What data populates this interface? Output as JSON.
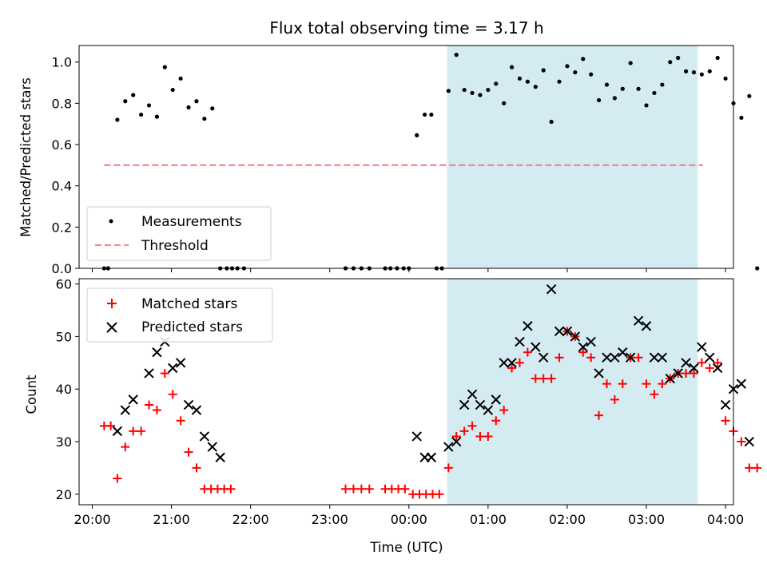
{
  "chart_data": [
    {
      "type": "scatter",
      "title": "Flux total observing time = 3.17 h",
      "xlabel": "",
      "ylabel": "Matched/Predicted stars",
      "ylim": [
        0,
        1.08
      ],
      "xlim": [
        "19:50",
        "04:06"
      ],
      "yticks": [
        "0.0",
        "0.2",
        "0.4",
        "0.6",
        "0.8",
        "1.0"
      ],
      "grid": false,
      "legend_position": "lower-left",
      "highlight_span": {
        "from": "00:29",
        "to": "03:39",
        "color": "#d4ebf1"
      },
      "series": [
        {
          "name": "Measurements",
          "marker": "dot",
          "color": "#000000",
          "points": [
            [
              "20:09",
              0
            ],
            [
              "20:12",
              0
            ],
            [
              "20:19",
              0.72
            ],
            [
              "20:25",
              0.81
            ],
            [
              "20:31",
              0.84
            ],
            [
              "20:37",
              0.745
            ],
            [
              "20:43",
              0.79
            ],
            [
              "20:49",
              0.735
            ],
            [
              "20:55",
              0.975
            ],
            [
              "21:01",
              0.865
            ],
            [
              "21:07",
              0.92
            ],
            [
              "21:13",
              0.78
            ],
            [
              "21:19",
              0.81
            ],
            [
              "21:25",
              0.725
            ],
            [
              "21:31",
              0.775
            ],
            [
              "21:37",
              0
            ],
            [
              "21:42",
              0
            ],
            [
              "21:46",
              0
            ],
            [
              "21:50",
              0
            ],
            [
              "21:55",
              0
            ],
            [
              "23:12",
              0
            ],
            [
              "23:18",
              0
            ],
            [
              "23:24",
              0
            ],
            [
              "23:30",
              0
            ],
            [
              "23:42",
              0
            ],
            [
              "23:46",
              0
            ],
            [
              "23:51",
              0
            ],
            [
              "23:56",
              0
            ],
            [
              "00:00",
              0
            ],
            [
              "00:06",
              0.645
            ],
            [
              "00:12",
              0.745
            ],
            [
              "00:17",
              0.745
            ],
            [
              "00:21",
              0
            ],
            [
              "00:25",
              0
            ],
            [
              "00:30",
              0.86
            ],
            [
              "00:36",
              1.035
            ],
            [
              "00:42",
              0.865
            ],
            [
              "00:48",
              0.85
            ],
            [
              "00:54",
              0.84
            ],
            [
              "01:00",
              0.865
            ],
            [
              "01:06",
              0.895
            ],
            [
              "01:12",
              0.8
            ],
            [
              "01:18",
              0.975
            ],
            [
              "01:24",
              0.92
            ],
            [
              "01:30",
              0.905
            ],
            [
              "01:36",
              0.88
            ],
            [
              "01:42",
              0.96
            ],
            [
              "01:48",
              0.71
            ],
            [
              "01:54",
              0.905
            ],
            [
              "02:00",
              0.98
            ],
            [
              "02:06",
              0.95
            ],
            [
              "02:12",
              1.015
            ],
            [
              "02:18",
              0.94
            ],
            [
              "02:24",
              0.815
            ],
            [
              "02:30",
              0.89
            ],
            [
              "02:36",
              0.825
            ],
            [
              "02:42",
              0.87
            ],
            [
              "02:48",
              0.995
            ],
            [
              "02:54",
              0.87
            ],
            [
              "03:00",
              0.79
            ],
            [
              "03:06",
              0.85
            ],
            [
              "03:12",
              0.89
            ],
            [
              "03:18",
              1.0
            ],
            [
              "03:24",
              1.02
            ],
            [
              "03:30",
              0.955
            ],
            [
              "03:36",
              0.95
            ],
            [
              "03:42",
              0.94
            ],
            [
              "03:48",
              0.955
            ],
            [
              "03:54",
              1.02
            ],
            [
              "04:00",
              0.92
            ],
            [
              "04:06",
              0.8
            ],
            [
              "04:12",
              0.73
            ],
            [
              "04:18",
              0.835
            ],
            [
              "04:24",
              0
            ]
          ]
        },
        {
          "name": "Threshold",
          "marker": "dashed-line",
          "color": "#ff7f7f",
          "x": [
            "20:09",
            "03:43"
          ],
          "y": [
            0.5,
            0.5
          ]
        }
      ]
    },
    {
      "type": "scatter",
      "title": "",
      "xlabel": "Time (UTC)",
      "ylabel": "Count",
      "ylim": [
        18,
        61
      ],
      "xticks": [
        "20:00",
        "21:00",
        "22:00",
        "23:00",
        "00:00",
        "01:00",
        "02:00",
        "03:00",
        "04:00"
      ],
      "yticks": [
        "20",
        "30",
        "40",
        "50",
        "60"
      ],
      "grid": false,
      "legend_position": "top-left",
      "highlight_span": {
        "from": "00:29",
        "to": "03:39",
        "color": "#d4ebf1"
      },
      "series": [
        {
          "name": "Matched stars",
          "marker": "plus",
          "color": "#ff0000",
          "points": [
            [
              "20:09",
              33
            ],
            [
              "20:14",
              33
            ],
            [
              "20:19",
              23
            ],
            [
              "20:25",
              29
            ],
            [
              "20:31",
              32
            ],
            [
              "20:37",
              32
            ],
            [
              "20:43",
              37
            ],
            [
              "20:49",
              36
            ],
            [
              "20:55",
              43
            ],
            [
              "21:01",
              39
            ],
            [
              "21:07",
              34
            ],
            [
              "21:13",
              28
            ],
            [
              "21:19",
              25
            ],
            [
              "21:25",
              21
            ],
            [
              "21:30",
              21
            ],
            [
              "21:35",
              21
            ],
            [
              "21:40",
              21
            ],
            [
              "21:45",
              21
            ],
            [
              "23:12",
              21
            ],
            [
              "23:18",
              21
            ],
            [
              "23:24",
              21
            ],
            [
              "23:30",
              21
            ],
            [
              "23:42",
              21
            ],
            [
              "23:47",
              21
            ],
            [
              "23:52",
              21
            ],
            [
              "23:57",
              21
            ],
            [
              "00:03",
              20
            ],
            [
              "00:08",
              20
            ],
            [
              "00:13",
              20
            ],
            [
              "00:18",
              20
            ],
            [
              "00:23",
              20
            ],
            [
              "00:30",
              25
            ],
            [
              "00:36",
              31
            ],
            [
              "00:42",
              32
            ],
            [
              "00:48",
              33
            ],
            [
              "00:54",
              31
            ],
            [
              "01:00",
              31
            ],
            [
              "01:06",
              34
            ],
            [
              "01:12",
              36
            ],
            [
              "01:18",
              44
            ],
            [
              "01:24",
              45
            ],
            [
              "01:30",
              47
            ],
            [
              "01:36",
              42
            ],
            [
              "01:42",
              42
            ],
            [
              "01:48",
              42
            ],
            [
              "01:54",
              46
            ],
            [
              "02:00",
              51
            ],
            [
              "02:06",
              50
            ],
            [
              "02:12",
              47
            ],
            [
              "02:18",
              46
            ],
            [
              "02:24",
              35
            ],
            [
              "02:30",
              41
            ],
            [
              "02:36",
              38
            ],
            [
              "02:42",
              41
            ],
            [
              "02:48",
              46
            ],
            [
              "02:54",
              46
            ],
            [
              "03:00",
              41
            ],
            [
              "03:06",
              39
            ],
            [
              "03:12",
              41
            ],
            [
              "03:18",
              42
            ],
            [
              "03:24",
              43
            ],
            [
              "03:30",
              43
            ],
            [
              "03:36",
              43
            ],
            [
              "03:42",
              45
            ],
            [
              "03:48",
              44
            ],
            [
              "03:54",
              45
            ],
            [
              "04:00",
              34
            ],
            [
              "04:06",
              32
            ],
            [
              "04:12",
              30
            ],
            [
              "04:18",
              25
            ],
            [
              "04:24",
              25
            ]
          ]
        },
        {
          "name": "Predicted stars",
          "marker": "x",
          "color": "#000000",
          "points": [
            [
              "20:19",
              32
            ],
            [
              "20:25",
              36
            ],
            [
              "20:31",
              38
            ],
            [
              "20:43",
              43
            ],
            [
              "20:49",
              47
            ],
            [
              "20:55",
              49
            ],
            [
              "21:01",
              44
            ],
            [
              "21:07",
              45
            ],
            [
              "21:13",
              37
            ],
            [
              "21:19",
              36
            ],
            [
              "21:25",
              31
            ],
            [
              "21:31",
              29
            ],
            [
              "21:37",
              27
            ],
            [
              "00:06",
              31
            ],
            [
              "00:12",
              27
            ],
            [
              "00:17",
              27
            ],
            [
              "00:30",
              29
            ],
            [
              "00:36",
              30
            ],
            [
              "00:42",
              37
            ],
            [
              "00:48",
              39
            ],
            [
              "00:54",
              37
            ],
            [
              "01:00",
              36
            ],
            [
              "01:06",
              38
            ],
            [
              "01:12",
              45
            ],
            [
              "01:18",
              45
            ],
            [
              "01:24",
              49
            ],
            [
              "01:30",
              52
            ],
            [
              "01:36",
              48
            ],
            [
              "01:42",
              46
            ],
            [
              "01:48",
              59
            ],
            [
              "01:54",
              51
            ],
            [
              "02:00",
              51
            ],
            [
              "02:06",
              50
            ],
            [
              "02:12",
              48
            ],
            [
              "02:18",
              49
            ],
            [
              "02:24",
              43
            ],
            [
              "02:30",
              46
            ],
            [
              "02:36",
              46
            ],
            [
              "02:42",
              47
            ],
            [
              "02:48",
              46
            ],
            [
              "02:54",
              53
            ],
            [
              "03:00",
              52
            ],
            [
              "03:06",
              46
            ],
            [
              "03:12",
              46
            ],
            [
              "03:18",
              42
            ],
            [
              "03:24",
              43
            ],
            [
              "03:30",
              45
            ],
            [
              "03:36",
              44
            ],
            [
              "03:42",
              48
            ],
            [
              "03:48",
              46
            ],
            [
              "03:54",
              44
            ],
            [
              "04:00",
              37
            ],
            [
              "04:06",
              40
            ],
            [
              "04:12",
              41
            ],
            [
              "04:18",
              30
            ]
          ]
        }
      ]
    }
  ]
}
